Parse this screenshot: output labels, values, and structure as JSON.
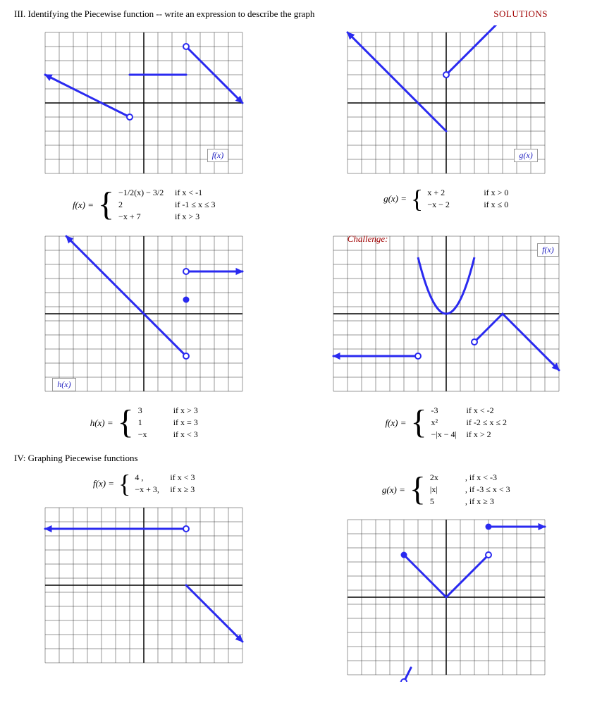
{
  "header": {
    "section_title": "III.  Identifying the Piecewise function -- write an expression to describe the graph",
    "solutions": "SOLUTIONS"
  },
  "section4_title": "IV:  Graphing Piecewise functions",
  "graphs": {
    "grid": {
      "cell": 20,
      "half_cells": 7,
      "stroke_grid": "#333333",
      "stroke_axis": "#000000",
      "stroke_width_grid": 0.5,
      "stroke_width_axis": 1.5,
      "line_color": "#2a2af0",
      "line_width": 3
    }
  },
  "p1": {
    "label": "f(x)",
    "name": "f(x) =",
    "pieces": [
      {
        "expr": "−1/2(x) − 3/2",
        "cond": "if  x < -1"
      },
      {
        "expr": "2",
        "cond": "if  -1 ≤ x ≤ 3"
      },
      {
        "expr": "−x + 7",
        "cond": "if   x > 3"
      }
    ]
  },
  "p2": {
    "label": "g(x)",
    "name": "g(x) =",
    "pieces": [
      {
        "expr": "x + 2",
        "cond": "if  x > 0"
      },
      {
        "expr": "−x − 2",
        "cond": "if  x ≤ 0"
      }
    ]
  },
  "p3": {
    "label": "h(x)",
    "name": "h(x) =",
    "pieces": [
      {
        "expr": "3",
        "cond": "if   x > 3"
      },
      {
        "expr": "1",
        "cond": "if   x = 3"
      },
      {
        "expr": "−x",
        "cond": "if   x < 3"
      }
    ]
  },
  "p4": {
    "challenge": "Challenge:",
    "label": "f(x)",
    "name": "f(x) =",
    "pieces": [
      {
        "expr": "-3",
        "cond": "if   x < -2"
      },
      {
        "expr": "x²",
        "cond": "if   -2 ≤ x ≤ 2"
      },
      {
        "expr": "−|x − 4|",
        "cond": "if    x > 2"
      }
    ]
  },
  "p5": {
    "name": "f(x) =",
    "pieces": [
      {
        "expr": "4 ,",
        "cond": "if  x < 3"
      },
      {
        "expr": "−x + 3,",
        "cond": "if  x ≥ 3"
      }
    ]
  },
  "p6": {
    "name": "g(x) =",
    "pieces": [
      {
        "expr": "2x",
        "cond": ",  if     x < -3"
      },
      {
        "expr": "|x|",
        "cond": ",  if   -3 ≤ x < 3"
      },
      {
        "expr": "5",
        "cond": ",  if     x ≥ 3"
      }
    ]
  }
}
